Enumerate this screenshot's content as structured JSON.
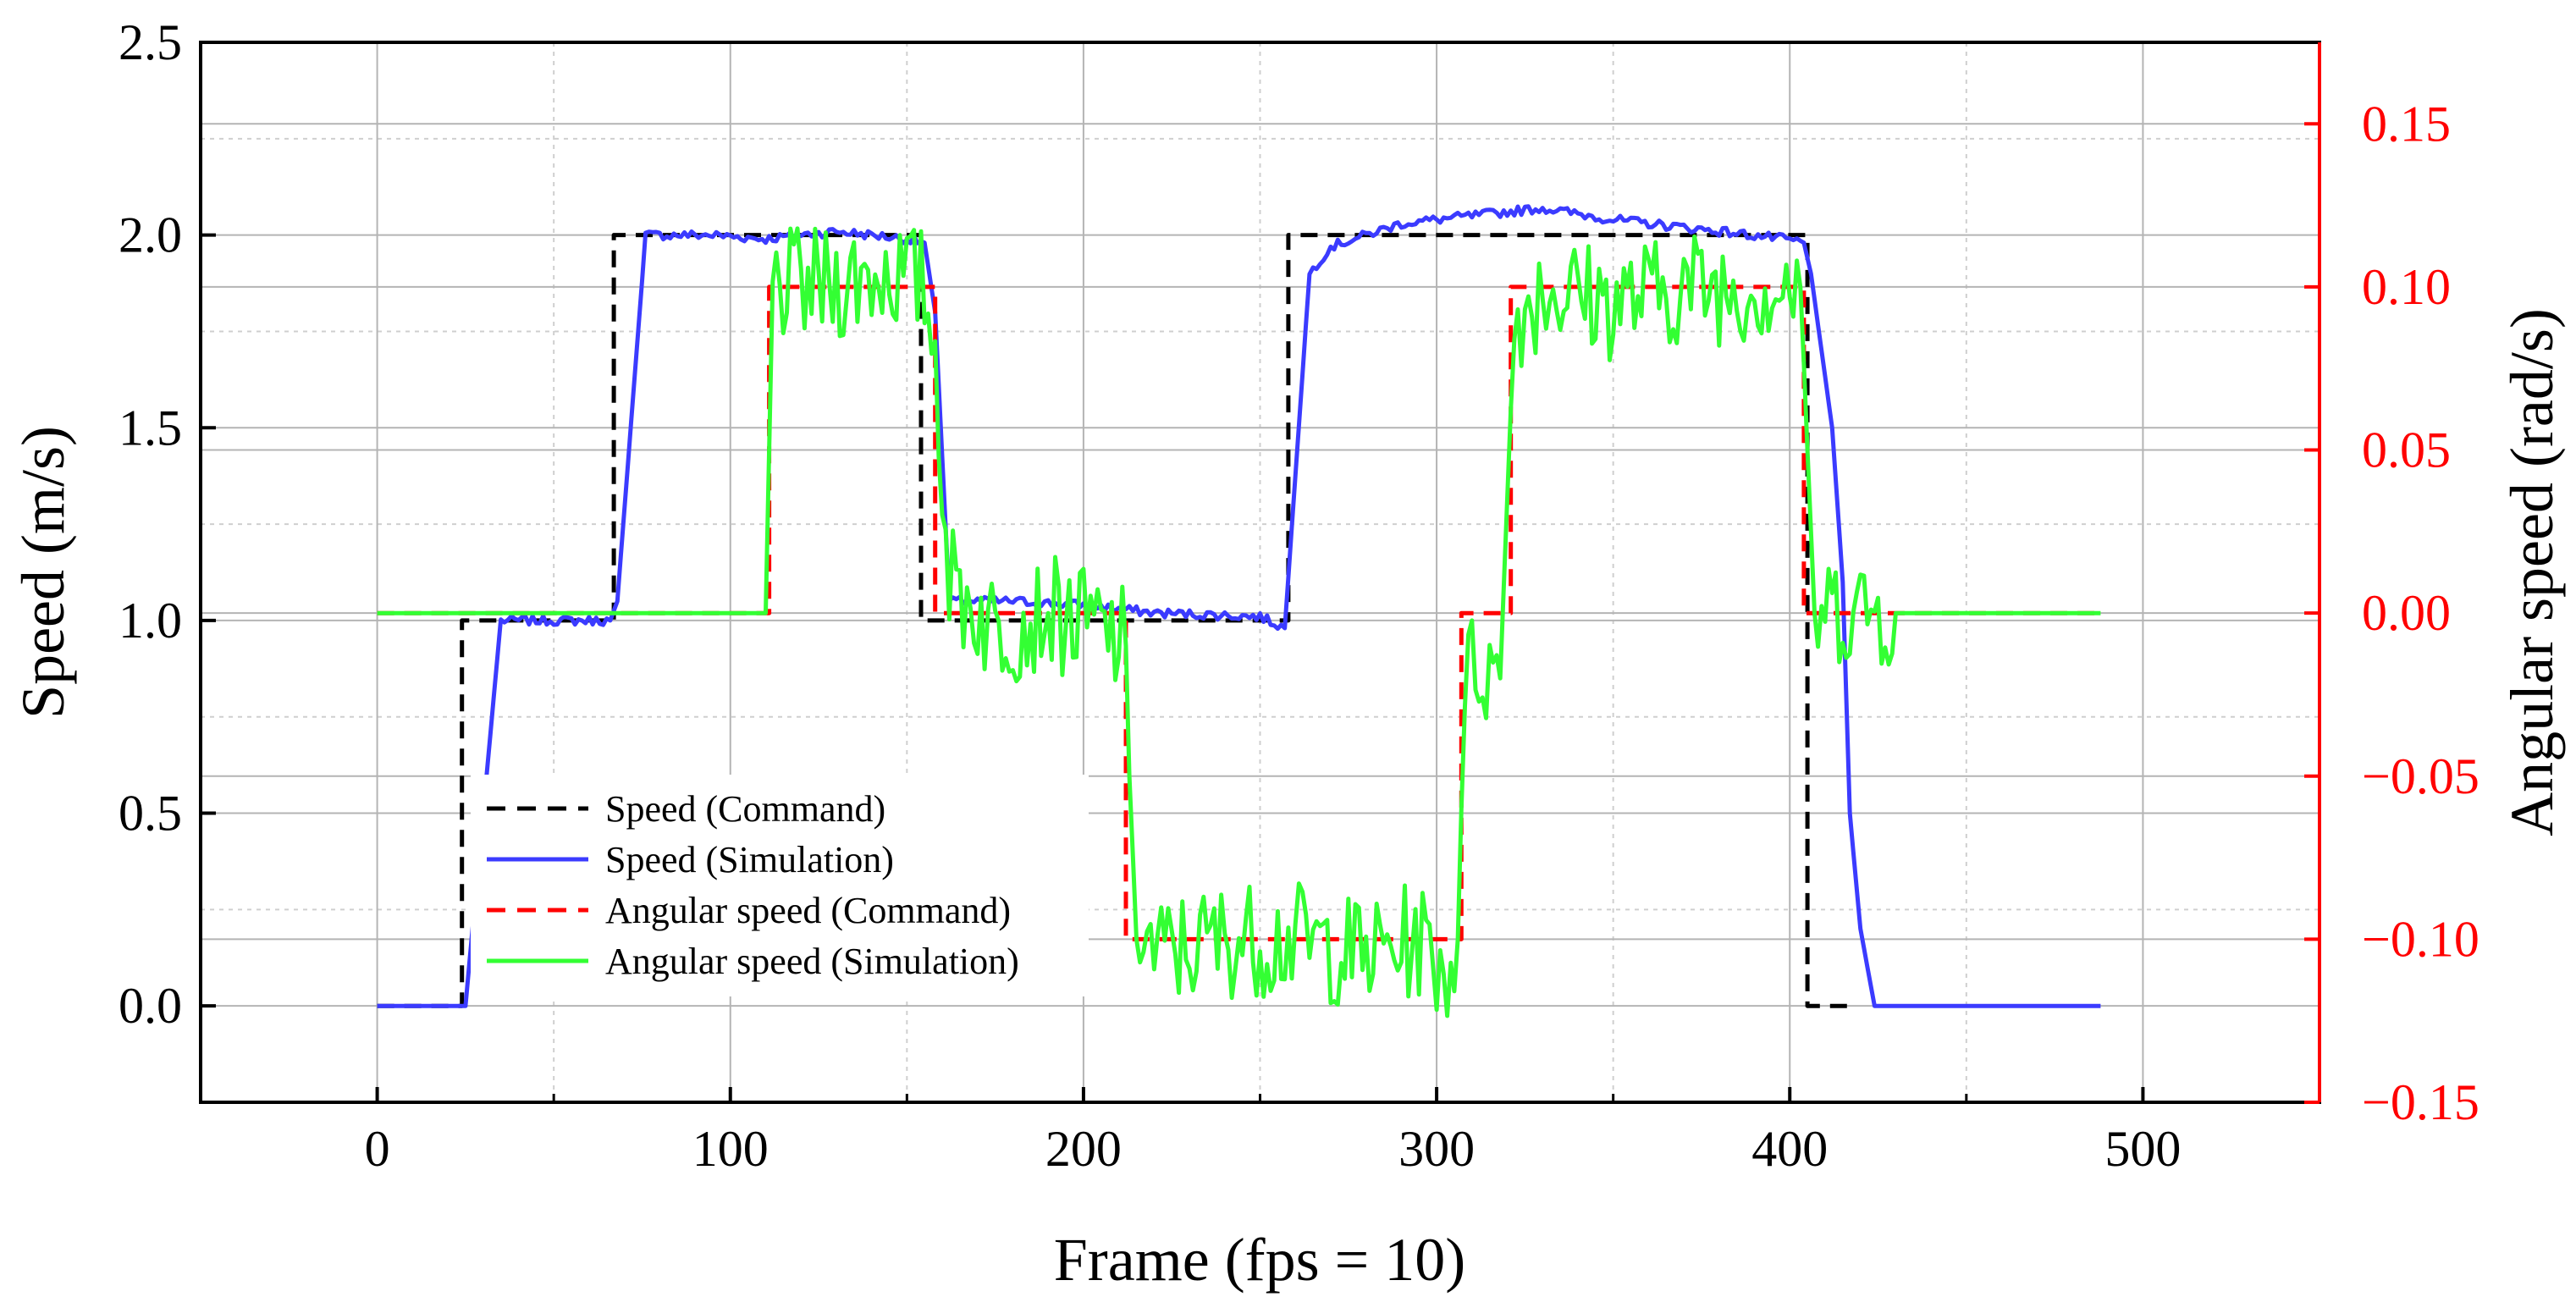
{
  "chart_data": {
    "type": "line",
    "xlabel": "Frame (fps = 10)",
    "ylabel_left": "Speed (m/s)",
    "ylabel_right": "Angular speed (rad/s)",
    "xlim": [
      -50,
      550
    ],
    "ylim_left": [
      -0.25,
      2.5
    ],
    "ylim_right": [
      -0.15,
      0.175
    ],
    "x_ticks": [
      0,
      100,
      200,
      300,
      400,
      500
    ],
    "x_tick_labels": [
      "0",
      "100",
      "200",
      "300",
      "400",
      "500"
    ],
    "y_left_ticks": [
      0.0,
      0.5,
      1.0,
      1.5,
      2.0,
      2.5
    ],
    "y_left_tick_labels": [
      "0.0",
      "0.5",
      "1.0",
      "1.5",
      "2.0",
      "2.5"
    ],
    "y_right_ticks": [
      -0.15,
      -0.1,
      -0.05,
      0.0,
      0.05,
      0.1,
      0.15
    ],
    "y_right_tick_labels": [
      "−0.15",
      "−0.10",
      "−0.05",
      "0.00",
      "0.05",
      "0.10",
      "0.15"
    ],
    "right_axis_color": "#ff0000",
    "grid": true,
    "legend_position": "bottom-left",
    "series": [
      {
        "name": "Speed (Command)",
        "axis": "left",
        "color": "#000000",
        "style": "dashed",
        "points": [
          [
            0,
            0
          ],
          [
            24,
            0
          ],
          [
            24,
            1
          ],
          [
            67,
            1
          ],
          [
            67,
            2
          ],
          [
            154,
            2
          ],
          [
            154,
            1
          ],
          [
            258,
            1
          ],
          [
            258,
            2
          ],
          [
            405,
            2
          ],
          [
            405,
            0
          ],
          [
            418,
            0
          ]
        ]
      },
      {
        "name": "Speed (Simulation)",
        "axis": "left",
        "color": "#3b3bff",
        "style": "solid",
        "noise": 0.012,
        "points": [
          [
            0,
            0
          ],
          [
            25,
            0
          ],
          [
            35,
            1
          ],
          [
            66,
            1
          ],
          [
            68,
            1.05
          ],
          [
            76,
            2
          ],
          [
            95,
            2
          ],
          [
            110,
            1.99
          ],
          [
            130,
            2.01
          ],
          [
            150,
            1.99
          ],
          [
            155,
            1.98
          ],
          [
            158,
            1.8
          ],
          [
            162,
            1.05
          ],
          [
            180,
            1.05
          ],
          [
            200,
            1.04
          ],
          [
            220,
            1.02
          ],
          [
            250,
            1.01
          ],
          [
            257,
            0.98
          ],
          [
            264,
            1.9
          ],
          [
            270,
            1.97
          ],
          [
            290,
            2.03
          ],
          [
            310,
            2.05
          ],
          [
            330,
            2.07
          ],
          [
            350,
            2.04
          ],
          [
            380,
            2.01
          ],
          [
            398,
            1.99
          ],
          [
            404,
            1.98
          ],
          [
            406,
            1.9
          ],
          [
            412,
            1.5
          ],
          [
            415,
            1.1
          ],
          [
            417,
            0.5
          ],
          [
            420,
            0.2
          ],
          [
            424,
            0
          ],
          [
            488,
            0
          ]
        ]
      },
      {
        "name": "Angular speed (Command)",
        "axis": "right",
        "color": "#ff0000",
        "style": "dashed",
        "points": [
          [
            0,
            0
          ],
          [
            111,
            0
          ],
          [
            111,
            0.1
          ],
          [
            158,
            0.1
          ],
          [
            158,
            0
          ],
          [
            212,
            0
          ],
          [
            212,
            -0.1
          ],
          [
            307,
            -0.1
          ],
          [
            307,
            0
          ],
          [
            321,
            0
          ],
          [
            321,
            0.1
          ],
          [
            404,
            0.1
          ],
          [
            404,
            0
          ],
          [
            488,
            0
          ]
        ]
      },
      {
        "name": "Angular speed (Simulation)",
        "axis": "right",
        "color": "#33ff33",
        "style": "solid",
        "noise": 0.006,
        "points": [
          [
            0,
            0
          ],
          [
            110,
            0
          ],
          [
            112,
            0.1
          ],
          [
            125,
            0.1
          ],
          [
            145,
            0.105
          ],
          [
            155,
            0.1
          ],
          [
            158,
            0.08
          ],
          [
            162,
            0.01
          ],
          [
            175,
            -0.005
          ],
          [
            190,
            0.0
          ],
          [
            205,
            -0.005
          ],
          [
            212,
            -0.01
          ],
          [
            214,
            -0.09
          ],
          [
            220,
            -0.105
          ],
          [
            240,
            -0.1
          ],
          [
            260,
            -0.1
          ],
          [
            280,
            -0.105
          ],
          [
            295,
            -0.1
          ],
          [
            303,
            -0.11
          ],
          [
            306,
            -0.1
          ],
          [
            308,
            -0.02
          ],
          [
            312,
            -0.015
          ],
          [
            318,
            -0.02
          ],
          [
            322,
            0.09
          ],
          [
            330,
            0.1
          ],
          [
            350,
            0.095
          ],
          [
            370,
            0.1
          ],
          [
            390,
            0.1
          ],
          [
            402,
            0.1
          ],
          [
            405,
            0.05
          ],
          [
            407,
            0.0
          ],
          [
            415,
            0.002
          ],
          [
            430,
            0.0
          ],
          [
            488,
            0
          ]
        ]
      }
    ]
  }
}
